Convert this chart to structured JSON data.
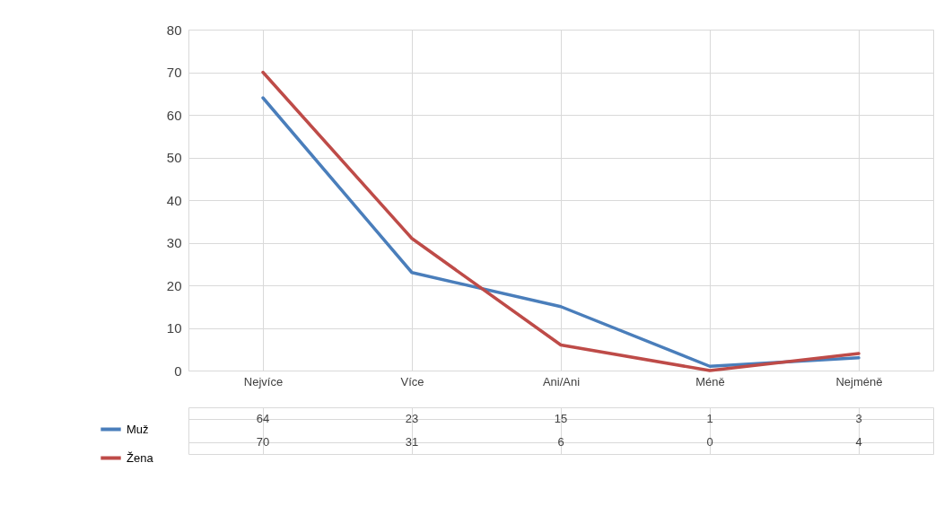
{
  "chart_data": {
    "type": "line",
    "categories": [
      "Nejvíce",
      "Více",
      "Ani/Ani",
      "Méně",
      "Nejméně"
    ],
    "series": [
      {
        "name": "Muž",
        "color": "#4a7ebb",
        "values": [
          64,
          23,
          15,
          1,
          3
        ]
      },
      {
        "name": "Žena",
        "color": "#be4b48",
        "values": [
          70,
          31,
          6,
          0,
          4
        ]
      }
    ],
    "ylim": [
      0,
      80
    ],
    "yticks": [
      0,
      10,
      20,
      30,
      40,
      50,
      60,
      70,
      80
    ],
    "grid": true,
    "legend": "bottom left",
    "data_labels": true
  }
}
